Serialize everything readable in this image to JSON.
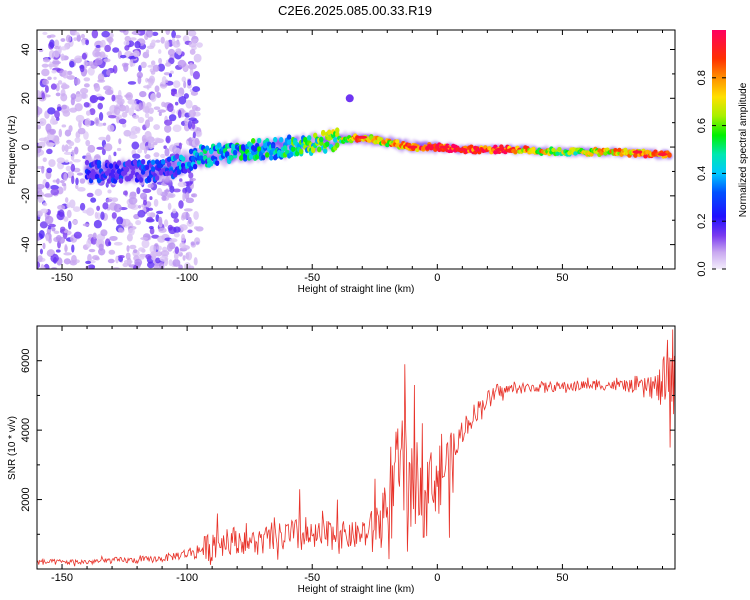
{
  "title": "C2E6.2025.085.00.33.R19",
  "colors": {
    "snr_line": "#e8332a",
    "spectrogram_low": "#d9c4f0",
    "spectrogram_high": "#e8000b"
  },
  "chart_data": [
    {
      "type": "heatmap",
      "title": "C2E6.2025.085.00.33.R19",
      "xlabel": "Height of straight line (km)",
      "ylabel": "Frequency (Hz)",
      "xlim": [
        -160,
        95
      ],
      "ylim": [
        -50,
        48
      ],
      "x_ticks": [
        -150,
        -100,
        -50,
        0,
        50
      ],
      "y_ticks": [
        -40,
        -20,
        0,
        20,
        40
      ],
      "x_tick_labels": [
        "-150",
        "-100",
        "-50",
        "0",
        "50"
      ],
      "y_tick_labels": [
        "-40",
        "-20",
        "0",
        "20",
        "40"
      ],
      "colorbar": {
        "label": "Normalized spectral amplitude",
        "range": [
          0,
          1
        ],
        "ticks": [
          0.0,
          0.2,
          0.4,
          0.6,
          0.8
        ],
        "tick_labels": [
          "0.0",
          "0.2",
          "0.4",
          "0.6",
          "0.8"
        ],
        "colormap": "rainbow (violet to red)"
      },
      "ridge": {
        "description_points_x_km": [
          -130,
          -110,
          -95,
          -80,
          -60,
          -40,
          -30,
          -20,
          -10,
          0,
          10,
          30,
          50,
          70,
          90
        ],
        "frequency_hz": [
          -10,
          -10,
          -4,
          -2,
          0,
          3,
          4,
          2,
          0,
          0,
          -1,
          -1,
          -2,
          -2,
          -3
        ],
        "amplitude": [
          0.15,
          0.25,
          0.35,
          0.4,
          0.45,
          0.6,
          0.8,
          0.7,
          0.85,
          0.85,
          0.95,
          0.8,
          0.6,
          0.7,
          0.85
        ]
      }
    },
    {
      "type": "line",
      "xlabel": "Height of straight line (km)",
      "ylabel": "SNR (10 * v/v)",
      "xlim": [
        -160,
        95
      ],
      "ylim": [
        0,
        7000
      ],
      "x_ticks": [
        -150,
        -100,
        -50,
        0,
        50
      ],
      "y_ticks": [
        2000,
        4000,
        6000
      ],
      "x_tick_labels": [
        "-150",
        "-100",
        "-50",
        "0",
        "50"
      ],
      "y_tick_labels": [
        "2000",
        "4000",
        "6000"
      ],
      "series": [
        {
          "x": [
            -160,
            -150,
            -140,
            -130,
            -120,
            -110,
            -100,
            -95,
            -90,
            -85,
            -80,
            -75,
            -70,
            -65,
            -60,
            -55,
            -50,
            -45,
            -40,
            -35,
            -30,
            -25,
            -20,
            -17,
            -15,
            -12,
            -10,
            -8,
            -5,
            -3,
            0,
            3,
            5,
            8,
            10,
            15,
            20,
            25,
            30,
            35,
            40,
            50,
            60,
            70,
            80,
            85,
            88,
            90,
            93,
            95
          ],
          "y": [
            200,
            200,
            200,
            250,
            250,
            300,
            450,
            550,
            700,
            800,
            850,
            750,
            800,
            850,
            950,
            950,
            900,
            950,
            1000,
            950,
            1000,
            1200,
            1700,
            2200,
            2800,
            2700,
            2200,
            2600,
            2800,
            2500,
            2600,
            3000,
            3100,
            3500,
            4000,
            4500,
            4900,
            5100,
            5200,
            5200,
            5250,
            5250,
            5300,
            5300,
            5250,
            5250,
            5200,
            5300,
            5400,
            5300
          ],
          "noise_amplitude": [
            80,
            80,
            80,
            90,
            90,
            100,
            150,
            250,
            500,
            400,
            400,
            350,
            400,
            400,
            500,
            500,
            400,
            500,
            400,
            400,
            400,
            600,
            900,
            1400,
            1600,
            1500,
            1200,
            1200,
            1200,
            900,
            1000,
            900,
            800,
            600,
            400,
            300,
            250,
            200,
            150,
            150,
            150,
            150,
            150,
            150,
            200,
            300,
            500,
            700,
            900,
            900
          ],
          "spikes": [
            {
              "x": -88,
              "y": 1600
            },
            {
              "x": -55,
              "y": 2300
            },
            {
              "x": -40,
              "y": 2000
            },
            {
              "x": -25,
              "y": 2600
            },
            {
              "x": -17,
              "y": 3100
            },
            {
              "x": -13,
              "y": 5900
            },
            {
              "x": -9,
              "y": 5300
            },
            {
              "x": -6,
              "y": 4200
            },
            {
              "x": -12,
              "y": 500
            },
            {
              "x": 5,
              "y": 900
            },
            {
              "x": 92,
              "y": 6600
            },
            {
              "x": 94,
              "y": 6900
            },
            {
              "x": 93,
              "y": 3500
            }
          ]
        }
      ]
    }
  ]
}
